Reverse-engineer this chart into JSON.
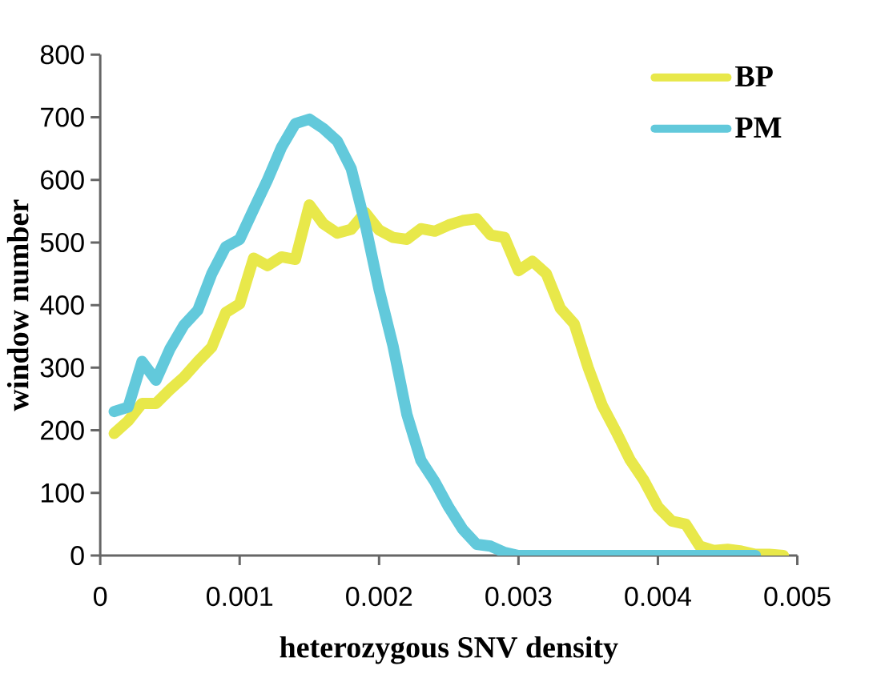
{
  "chart_data": {
    "type": "line",
    "xlabel": "heterozygous SNV density",
    "ylabel": "window number",
    "x": [
      0.0001,
      0.0002,
      0.0003,
      0.0004,
      0.0005,
      0.0006,
      0.0007,
      0.0008,
      0.0009,
      0.001,
      0.0011,
      0.0012,
      0.0013,
      0.0014,
      0.0015,
      0.0016,
      0.0017,
      0.0018,
      0.0019,
      0.002,
      0.0021,
      0.0022,
      0.0023,
      0.0024,
      0.0025,
      0.0026,
      0.0027,
      0.0028,
      0.0029,
      0.003,
      0.0031,
      0.0032,
      0.0033,
      0.0034,
      0.0035,
      0.0036,
      0.0037,
      0.0038,
      0.0039,
      0.004,
      0.0041,
      0.0042,
      0.0043,
      0.0044,
      0.0045,
      0.0046,
      0.0047,
      0.0048,
      0.0049
    ],
    "series": [
      {
        "name": "BP",
        "color": "#e8e84a",
        "values": [
          195,
          215,
          243,
          243,
          265,
          285,
          310,
          333,
          388,
          402,
          475,
          463,
          477,
          473,
          560,
          530,
          515,
          521,
          548,
          520,
          508,
          505,
          522,
          518,
          528,
          535,
          538,
          512,
          508,
          455,
          470,
          450,
          395,
          370,
          300,
          240,
          198,
          153,
          120,
          78,
          55,
          50,
          15,
          8,
          10,
          7,
          2,
          2,
          0
        ]
      },
      {
        "name": "PM",
        "color": "#62c9db",
        "values": [
          230,
          237,
          310,
          280,
          330,
          368,
          392,
          450,
          493,
          505,
          553,
          600,
          652,
          690,
          697,
          682,
          662,
          618,
          530,
          425,
          335,
          225,
          152,
          118,
          77,
          42,
          18,
          15,
          5,
          0,
          0,
          0,
          0,
          0,
          0,
          0,
          0,
          0,
          0,
          0,
          0,
          0,
          0,
          0,
          0,
          0,
          0,
          null,
          null
        ]
      }
    ],
    "xlim": [
      0,
      0.005
    ],
    "xticks": [
      0,
      0.001,
      0.002,
      0.003,
      0.004,
      0.005
    ],
    "ylim": [
      0,
      800
    ],
    "yticks": [
      0,
      100,
      200,
      300,
      400,
      500,
      600,
      700,
      800
    ],
    "grid": false,
    "legend": "top right",
    "marker": "none",
    "line_style": "solid"
  }
}
